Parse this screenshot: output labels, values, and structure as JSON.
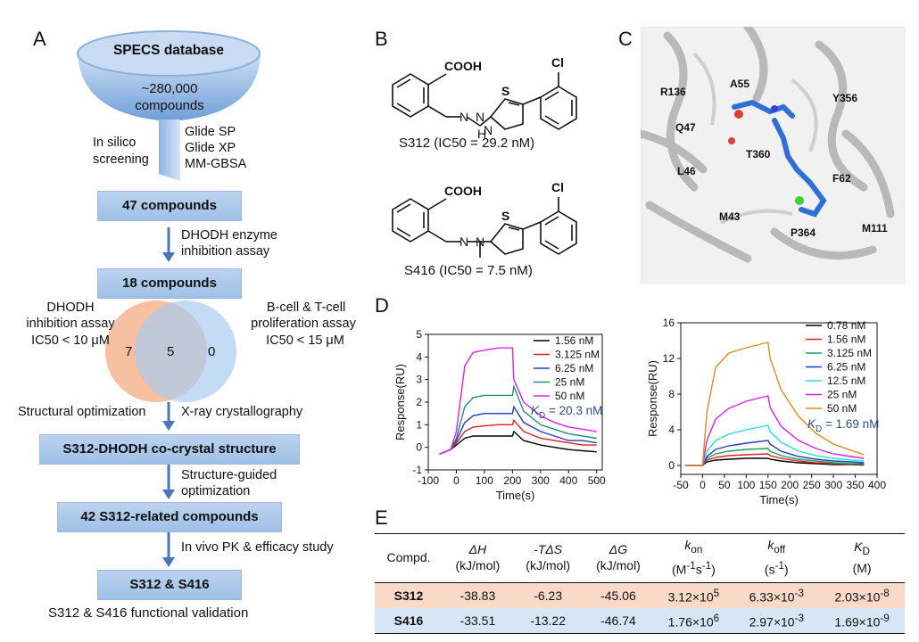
{
  "panel_labels": {
    "a": "A",
    "b": "B",
    "c": "C",
    "d": "D",
    "e": "E"
  },
  "panel_a": {
    "funnel_title": "SPECS database",
    "funnel_count": "~280,000",
    "funnel_unit": "compounds",
    "screening_label_1": "In silico",
    "screening_label_2": "screening",
    "methods": [
      "Glide SP",
      "Glide XP",
      "MM-GBSA"
    ],
    "box1": "47 compounds",
    "step1_line1": "DHODH enzyme",
    "step1_line2": "inhibition assay",
    "box2": "18 compounds",
    "left_assay_1": "DHODH",
    "left_assay_2": "inhibition assay",
    "left_assay_3": "IC50 < 10 μM",
    "right_assay_1": "B-cell & T-cell",
    "right_assay_2": "proliferation assay",
    "right_assay_3": "IC50 < 15 μM",
    "venn_left": "7",
    "venn_mid": "5",
    "venn_right": "0",
    "step2_left": "Structural optimization",
    "step2_right": "X-ray crystallography",
    "box3": "S312-DHODH co-crystal structure",
    "step3_line1": "Structure-guided",
    "step3_line2": "optimization",
    "box4": "42 S312-related compounds",
    "step4": "In vivo PK & efficacy study",
    "box5": "S312 & S416",
    "final_text": "S312 & S416 functional validation",
    "colors": {
      "box_fill": "#a9c7ea",
      "arrow": "#4a74bd",
      "venn_left": "#f6b58f",
      "venn_right": "#a9ccef"
    }
  },
  "panel_b": {
    "s312_caption": "S312 (IC50 = 29.2 nM)",
    "s416_caption": "S416 (IC50 = 7.5 nM)",
    "atom_cooh": "COOH",
    "atom_cl": "Cl",
    "atom_s": "S",
    "atom_n": "N",
    "atom_h": "H"
  },
  "panel_c": {
    "residues": [
      "R136",
      "A55",
      "Y356",
      "Q47",
      "T360",
      "L46",
      "F62",
      "M43",
      "P364",
      "M111"
    ]
  },
  "panel_d": {
    "left_kd": "20.3 nM",
    "right_kd": "1.69 nM"
  },
  "chart_data": [
    {
      "type": "line",
      "title": "",
      "xlabel": "Time(s)",
      "ylabel": "Response(RU)",
      "xlim": [
        -100,
        520
      ],
      "ylim": [
        -1,
        5
      ],
      "xticks": [
        -100,
        0,
        100,
        200,
        300,
        400,
        500
      ],
      "yticks": [
        -1,
        0,
        1,
        2,
        3,
        4,
        5
      ],
      "legend_position": "top-right",
      "annotation": "KD = 20.3 nM",
      "x": [
        -60,
        -40,
        -20,
        0,
        30,
        60,
        100,
        150,
        200,
        205,
        240,
        300,
        350,
        400,
        450,
        500
      ],
      "series": [
        {
          "name": "1.56 nM",
          "color": "#000000",
          "values": [
            -0.3,
            -0.2,
            -0.1,
            0.1,
            0.4,
            0.5,
            0.5,
            0.5,
            0.5,
            0.7,
            0.3,
            0.1,
            0.0,
            -0.1,
            -0.15,
            -0.2
          ]
        },
        {
          "name": "3.125 nM",
          "color": "#e0201f",
          "values": [
            -0.3,
            -0.2,
            -0.1,
            0.2,
            0.7,
            0.9,
            0.95,
            1.0,
            1.0,
            1.2,
            0.7,
            0.4,
            0.3,
            0.2,
            0.1,
            0.1
          ]
        },
        {
          "name": "6.25 nM",
          "color": "#1f3fbf",
          "values": [
            -0.3,
            -0.2,
            -0.1,
            0.3,
            1.1,
            1.4,
            1.5,
            1.5,
            1.5,
            1.8,
            1.1,
            0.7,
            0.5,
            0.3,
            0.3,
            0.2
          ]
        },
        {
          "name": "25 nM",
          "color": "#2b8a7e",
          "values": [
            -0.3,
            -0.2,
            -0.1,
            0.4,
            1.8,
            2.2,
            2.3,
            2.3,
            2.3,
            2.7,
            1.6,
            1.0,
            0.8,
            0.6,
            0.5,
            0.4
          ]
        },
        {
          "name": "50 nM",
          "color": "#e020e0",
          "values": [
            -0.3,
            -0.2,
            -0.1,
            0.7,
            3.6,
            4.2,
            4.3,
            4.4,
            4.4,
            3.0,
            2.0,
            1.4,
            1.1,
            0.9,
            0.8,
            0.7
          ]
        }
      ]
    },
    {
      "type": "line",
      "title": "",
      "xlabel": "Time(s)",
      "ylabel": "Response(RU)",
      "xlim": [
        -50,
        400
      ],
      "ylim": [
        -1,
        16
      ],
      "xticks": [
        -50,
        0,
        50,
        100,
        150,
        200,
        250,
        300,
        350,
        400
      ],
      "yticks": [
        0,
        4,
        8,
        12,
        16
      ],
      "legend_position": "top-right",
      "annotation": "KD = 1.69 nM",
      "x": [
        -40,
        -10,
        0,
        10,
        30,
        60,
        100,
        150,
        155,
        180,
        220,
        260,
        300,
        340,
        370
      ],
      "series": [
        {
          "name": "0.78 nM",
          "color": "#000000",
          "values": [
            0,
            0,
            0,
            0.4,
            0.6,
            0.7,
            0.8,
            0.8,
            0.7,
            0.5,
            0.3,
            0.2,
            0.1,
            0.1,
            0.05
          ]
        },
        {
          "name": "1.56 nM",
          "color": "#e0201f",
          "values": [
            0,
            0,
            0,
            0.6,
            0.9,
            1.1,
            1.2,
            1.3,
            1.1,
            0.8,
            0.5,
            0.3,
            0.2,
            0.15,
            0.1
          ]
        },
        {
          "name": "3.125 nM",
          "color": "#19a35a",
          "values": [
            0,
            0,
            0,
            0.8,
            1.3,
            1.6,
            1.8,
            1.9,
            1.6,
            1.1,
            0.7,
            0.5,
            0.3,
            0.2,
            0.2
          ]
        },
        {
          "name": "6.25 nM",
          "color": "#1f3fbf",
          "values": [
            0,
            0,
            0,
            1.0,
            1.8,
            2.2,
            2.5,
            2.8,
            2.4,
            1.6,
            1.0,
            0.7,
            0.5,
            0.4,
            0.3
          ]
        },
        {
          "name": "12.5 nM",
          "color": "#22e0e0",
          "values": [
            0,
            0,
            0,
            1.6,
            2.8,
            3.5,
            4.0,
            4.5,
            3.8,
            2.6,
            1.6,
            1.1,
            0.8,
            0.6,
            0.5
          ]
        },
        {
          "name": "25 nM",
          "color": "#e020e0",
          "values": [
            0,
            0,
            0,
            2.8,
            5.2,
            6.4,
            7.2,
            7.8,
            6.5,
            4.4,
            2.8,
            1.9,
            1.3,
            1.0,
            0.8
          ]
        },
        {
          "name": "50 nM",
          "color": "#e08b1c",
          "values": [
            0,
            0,
            0,
            6.0,
            11.0,
            12.6,
            13.2,
            13.8,
            12.0,
            8.5,
            5.5,
            3.6,
            2.4,
            1.7,
            1.2
          ]
        }
      ]
    },
    {
      "type": "table",
      "columns": [
        "Compd.",
        "ΔH (kJ/mol)",
        "-TΔS (kJ/mol)",
        "ΔG (kJ/mol)",
        "kon (M-1s-1)",
        "koff (s-1)",
        "KD (M)"
      ],
      "rows": [
        [
          "S312",
          "-38.83",
          "-6.23",
          "-45.06",
          "3.12×10^5",
          "6.33×10^-3",
          "2.03×10^-8"
        ],
        [
          "S416",
          "-33.51",
          "-13.22",
          "-46.74",
          "1.76×10^6",
          "2.97×10^-3",
          "1.69×10^-9"
        ]
      ]
    }
  ],
  "panel_e": {
    "headers": {
      "compd": "Compd.",
      "dh": "ΔH",
      "dh_unit": "(kJ/mol)",
      "tds": "-TΔS",
      "tds_unit": "(kJ/mol)",
      "dg": "ΔG",
      "dg_unit": "(kJ/mol)",
      "kon_k": "k",
      "kon_sub": "on",
      "kon_unit_a": "(M",
      "kon_unit_b": "-1",
      "kon_unit_c": "s",
      "kon_unit_d": "-1",
      "kon_unit_e": ")",
      "koff_k": "k",
      "koff_sub": "off",
      "koff_unit_a": "(s",
      "koff_unit_b": "-1",
      "koff_unit_c": ")",
      "kd_k": "K",
      "kd_sub": "D",
      "kd_unit": "(M)"
    },
    "rows": [
      {
        "cpd": "S312",
        "dh": "-38.83",
        "tds": "-6.23",
        "dg": "-45.06",
        "kon_m": "3.12×10",
        "kon_e": "5",
        "koff_m": "6.33×10",
        "koff_e": "-3",
        "kd_m": "2.03×10",
        "kd_e": "-8"
      },
      {
        "cpd": "S416",
        "dh": "-33.51",
        "tds": "-13.22",
        "dg": "-46.74",
        "kon_m": "1.76×10",
        "kon_e": "6",
        "koff_m": "2.97×10",
        "koff_e": "-3",
        "kd_m": "1.69×10",
        "kd_e": "-9"
      }
    ]
  }
}
